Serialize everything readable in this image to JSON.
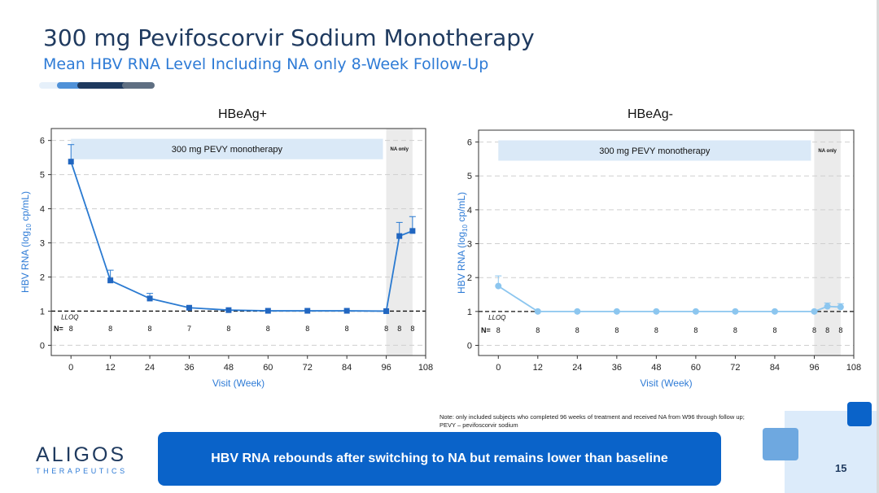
{
  "slide": {
    "title": "300 mg Pevifoscorvir Sodium Monotherapy",
    "subtitle": "Mean HBV RNA Level Including NA only 8-Week Follow-Up",
    "note_line1": "Note: only included subjects who completed 96 weeks of treatment and received NA from W96 through follow up;",
    "note_line2": "PEVY – pevifoscorvir sodium",
    "banner": "HBV RNA rebounds after switching to NA but remains lower than baseline",
    "logo_main": "ALIGOS",
    "logo_sub": "THERAPEUTICS",
    "page_number": "15",
    "colors": {
      "primary": "#0a63c9",
      "dark": "#1f3a5f",
      "accent": "#2e7bd6"
    }
  },
  "chart_data": [
    {
      "type": "line",
      "title": "HBeAg+",
      "xlabel": "Visit (Week)",
      "ylabel_main": "HBV RNA (log",
      "ylabel_sub": "10",
      "ylabel_tail": " cp/mL)",
      "xlim": [
        -6,
        108
      ],
      "ylim": [
        -0.3,
        6.35
      ],
      "xticks": [
        0,
        12,
        24,
        36,
        48,
        60,
        72,
        84,
        96,
        108
      ],
      "yticks": [
        0,
        1,
        2,
        3,
        4,
        5,
        6
      ],
      "color": "#2a7ad1",
      "marker": "square",
      "series": [
        {
          "name": "Mean HBV RNA",
          "x": [
            0,
            12,
            24,
            36,
            48,
            60,
            72,
            84,
            96,
            100,
            104
          ],
          "y": [
            5.38,
            1.9,
            1.37,
            1.1,
            1.03,
            1.01,
            1.01,
            1.01,
            1.0,
            3.2,
            3.35
          ],
          "err": [
            0.5,
            0.3,
            0.15,
            0.0,
            0.0,
            0.0,
            0.0,
            0.0,
            0.0,
            0.4,
            0.42
          ]
        }
      ],
      "lloq": 1,
      "lloq_label": "LLOQ",
      "treatment_label": "300 mg PEVY monotherapy",
      "treatment_range": [
        0,
        95
      ],
      "treatment_y": [
        5.45,
        6.05
      ],
      "na_label": "NA only",
      "na_range": [
        96,
        104
      ],
      "n_label": "N=",
      "n_values": [
        "8",
        "8",
        "8",
        "7",
        "8",
        "8",
        "8",
        "8",
        "8",
        "8",
        "8"
      ]
    },
    {
      "type": "line",
      "title": "HBeAg-",
      "xlabel": "Visit (Week)",
      "ylabel_main": "HBV RNA (log",
      "ylabel_sub": "10",
      "ylabel_tail": " cp/mL)",
      "xlim": [
        -6,
        108
      ],
      "ylim": [
        -0.3,
        6.35
      ],
      "xticks": [
        0,
        12,
        24,
        36,
        48,
        60,
        72,
        84,
        96,
        108
      ],
      "yticks": [
        0,
        1,
        2,
        3,
        4,
        5,
        6
      ],
      "color": "#8cc6ef",
      "marker": "circle",
      "series": [
        {
          "name": "Mean HBV RNA",
          "x": [
            0,
            12,
            24,
            36,
            48,
            60,
            72,
            84,
            96,
            100,
            104
          ],
          "y": [
            1.75,
            1.0,
            1.0,
            1.0,
            1.0,
            1.0,
            1.0,
            1.0,
            1.0,
            1.15,
            1.13
          ],
          "err": [
            0.3,
            0.0,
            0.0,
            0.0,
            0.0,
            0.0,
            0.0,
            0.0,
            0.0,
            0.1,
            0.1
          ]
        }
      ],
      "lloq": 1,
      "lloq_label": "LLOQ",
      "treatment_label": "300 mg PEVY monotherapy",
      "treatment_range": [
        0,
        95
      ],
      "treatment_y": [
        5.45,
        6.05
      ],
      "na_label": "NA only",
      "na_range": [
        96,
        104
      ],
      "n_label": "N=",
      "n_values": [
        "8",
        "8",
        "8",
        "8",
        "8",
        "8",
        "8",
        "8",
        "8",
        "8",
        "8"
      ]
    }
  ]
}
